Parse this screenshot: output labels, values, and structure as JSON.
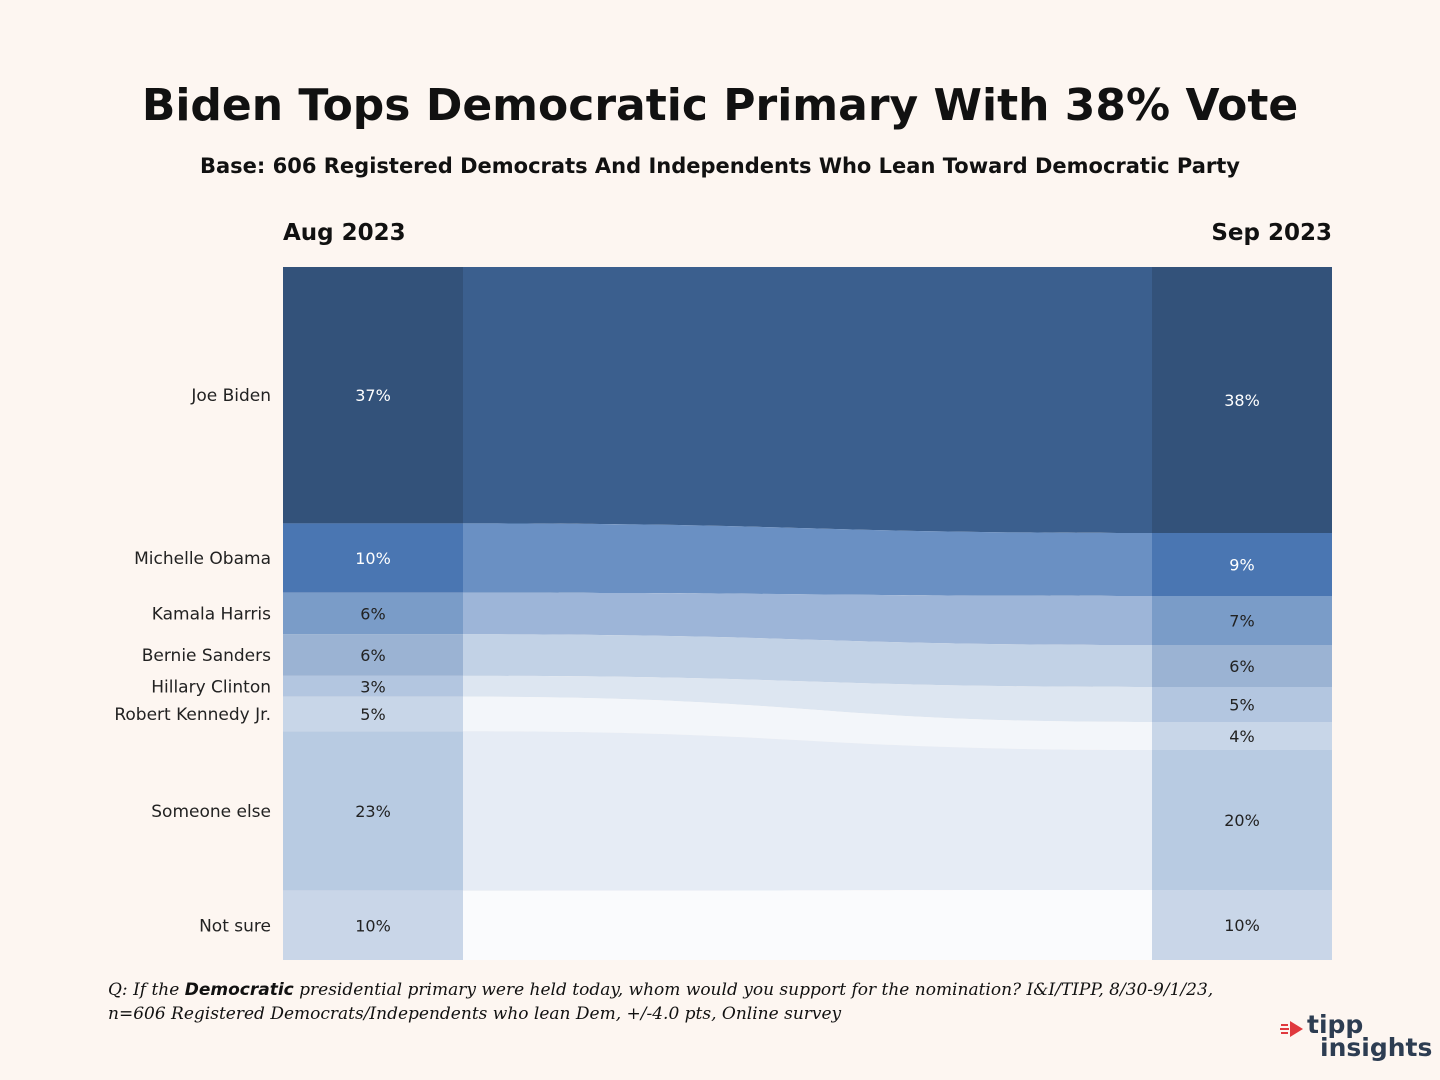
{
  "title": "Biden Tops Democratic Primary With 38% Vote",
  "subtitle": "Base: 606 Registered Democrats And Independents Who Lean Toward Democratic Party",
  "footnote": {
    "pre": "Q:  If the ",
    "bold": "Democratic",
    "post": "  presidential primary were held today, whom would you support for the nomination? I&I/TIPP, 8/30-9/1/23, n=606 Registered Democrats/Independents who lean Dem, +/-4.0 pts, Online survey"
  },
  "logo": {
    "line1": "tipp",
    "line2": "insights"
  },
  "colors": {
    "node": [
      "#33527a",
      "#4a76b2",
      "#7a9cc8",
      "#9bb3d3",
      "#b3c6e0",
      "#c8d6e8",
      "#b8cbe2",
      "#c9d6e8"
    ],
    "flow": [
      "#3b5f8e",
      "#6a90c3",
      "#9db5d8",
      "#c2d2e6",
      "#dde6f1",
      "#f3f6fa",
      "#e6ecf5",
      "#fafbfd"
    ]
  },
  "chart_data": {
    "type": "sankey",
    "columns": [
      "Aug 2023",
      "Sep 2023"
    ],
    "categories": [
      "Joe Biden",
      "Michelle Obama",
      "Kamala Harris",
      "Bernie Sanders",
      "Hillary Clinton",
      "Robert Kennedy Jr.",
      "Someone else",
      "Not sure"
    ],
    "aug_values": [
      37,
      10,
      6,
      6,
      3,
      5,
      23,
      10
    ],
    "sep_values": [
      38,
      9,
      7,
      6,
      5,
      4,
      20,
      10
    ],
    "aug_labels": [
      "37%",
      "10%",
      "6%",
      "6%",
      "3%",
      "5%",
      "23%",
      "10%"
    ],
    "sep_labels": [
      "38%",
      "9%",
      "7%",
      "6%",
      "5%",
      "4%",
      "20%",
      "10%"
    ]
  }
}
